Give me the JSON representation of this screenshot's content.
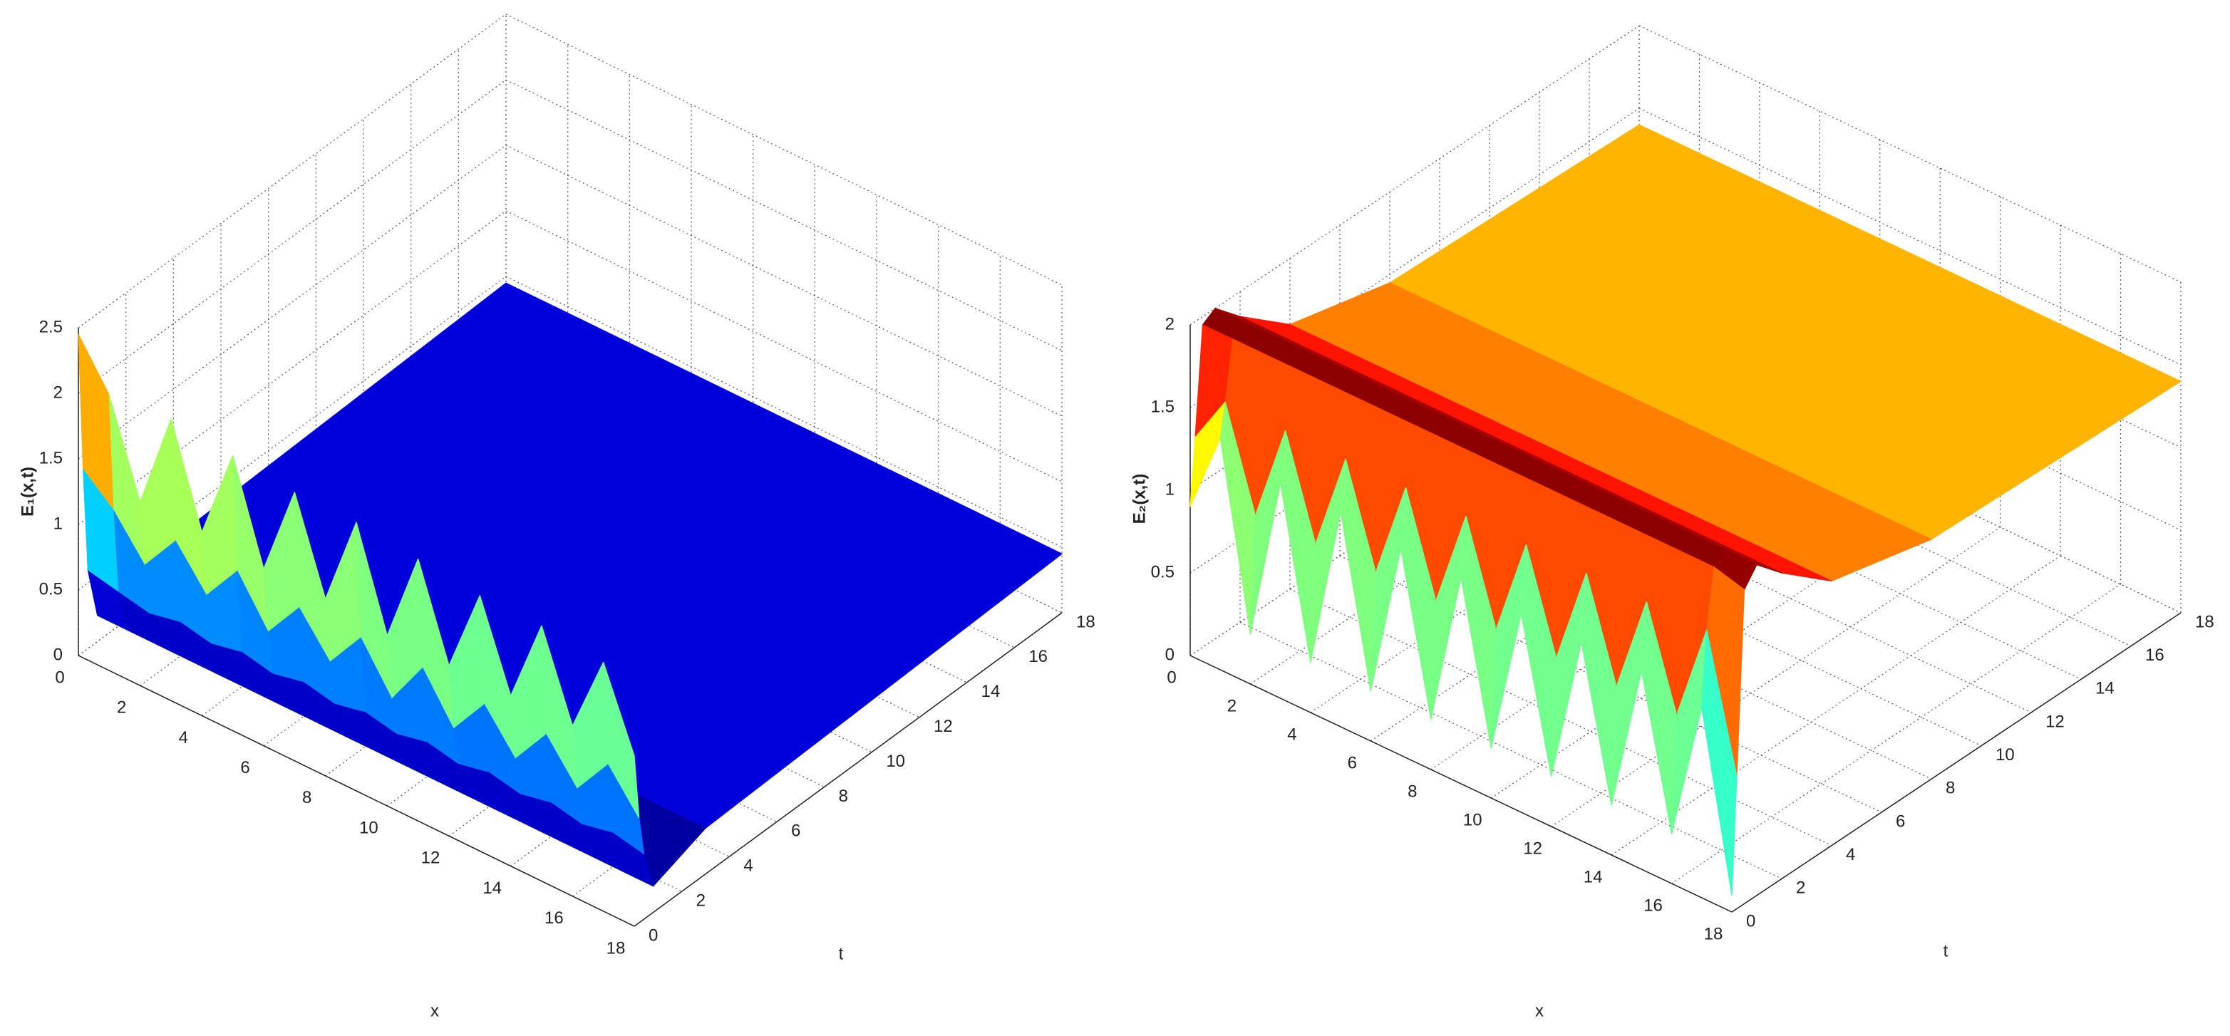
{
  "chart_data": [
    {
      "type": "surface",
      "colormap": "jet",
      "grid": true,
      "xlabel": "x",
      "tlabel": "t",
      "zlabel": "E₁(x,t)",
      "x": [
        0,
        1,
        2,
        3,
        4,
        5,
        6,
        7,
        8,
        9,
        10,
        11,
        12,
        13,
        14,
        15,
        16,
        17,
        18
      ],
      "t": [
        0,
        0.2,
        0.4,
        0.8,
        3,
        18
      ],
      "z": [
        [
          2.45,
          2.1,
          1.4,
          2.15,
          1.4,
          2.1,
          1.35,
          2.05,
          1.35,
          2.05,
          1.3,
          2.0,
          1.3,
          1.95,
          1.3,
          1.95,
          1.3,
          1.9,
          1.3
        ],
        [
          1.4,
          1.2,
          0.9,
          1.2,
          0.9,
          1.2,
          0.85,
          1.15,
          0.85,
          1.15,
          0.8,
          1.15,
          0.8,
          1.1,
          0.8,
          1.1,
          0.8,
          1.1,
          0.8
        ],
        [
          0.6,
          0.55,
          0.5,
          0.55,
          0.5,
          0.55,
          0.5,
          0.55,
          0.5,
          0.55,
          0.5,
          0.55,
          0.5,
          0.55,
          0.5,
          0.55,
          0.5,
          0.55,
          0.5
        ],
        [
          0.2,
          0.2,
          0.2,
          0.2,
          0.2,
          0.2,
          0.2,
          0.2,
          0.2,
          0.2,
          0.2,
          0.2,
          0.2,
          0.2,
          0.2,
          0.2,
          0.2,
          0.2,
          0.2
        ],
        [
          0.35,
          0.35,
          0.35,
          0.35,
          0.35,
          0.35,
          0.35,
          0.35,
          0.35,
          0.35,
          0.35,
          0.35,
          0.35,
          0.35,
          0.35,
          0.35,
          0.35,
          0.35,
          0.35
        ],
        [
          0.45,
          0.45,
          0.45,
          0.45,
          0.45,
          0.45,
          0.45,
          0.45,
          0.45,
          0.45,
          0.45,
          0.45,
          0.45,
          0.45,
          0.45,
          0.45,
          0.45,
          0.45,
          0.45
        ]
      ],
      "xlim": [
        0,
        18
      ],
      "tlim": [
        0,
        18
      ],
      "zlim": [
        0,
        2.5
      ],
      "xticks": [
        0,
        2,
        4,
        6,
        8,
        10,
        12,
        14,
        16,
        18
      ],
      "tticks": [
        0,
        2,
        4,
        6,
        8,
        10,
        12,
        14,
        16,
        18
      ],
      "zticks": [
        0,
        0.5,
        1,
        1.5,
        2,
        2.5
      ]
    },
    {
      "type": "surface",
      "colormap": "jet",
      "grid": true,
      "xlabel": "x",
      "tlabel": "t",
      "zlabel": "E₂(x,t)",
      "x": [
        0,
        1,
        2,
        3,
        4,
        5,
        6,
        7,
        8,
        9,
        10,
        11,
        12,
        13,
        14,
        15,
        16,
        17,
        18
      ],
      "t": [
        0,
        0.2,
        0.5,
        1,
        2,
        4,
        8,
        18
      ],
      "z": [
        [
          0.9,
          1.4,
          0.3,
          1.3,
          0.3,
          1.3,
          0.3,
          1.25,
          0.3,
          1.25,
          0.3,
          1.2,
          0.3,
          1.2,
          0.3,
          1.2,
          0.3,
          1.15,
          0.1
        ],
        [
          1.3,
          1.6,
          1.0,
          1.6,
          1.0,
          1.6,
          1.0,
          1.6,
          1.0,
          1.6,
          1.0,
          1.6,
          1.0,
          1.6,
          1.0,
          1.6,
          1.0,
          1.6,
          0.8
        ],
        [
          1.95,
          1.95,
          1.95,
          1.95,
          1.95,
          1.95,
          1.95,
          1.95,
          1.95,
          1.95,
          1.95,
          1.95,
          1.95,
          1.95,
          1.95,
          1.95,
          1.95,
          1.95,
          1.9
        ],
        [
          2.0,
          2.0,
          2.0,
          2.0,
          2.0,
          2.0,
          2.0,
          2.0,
          2.0,
          2.0,
          2.0,
          2.0,
          2.0,
          2.0,
          2.0,
          2.0,
          2.0,
          2.0,
          2.0
        ],
        [
          1.85,
          1.85,
          1.85,
          1.85,
          1.85,
          1.85,
          1.85,
          1.85,
          1.85,
          1.85,
          1.85,
          1.85,
          1.85,
          1.85,
          1.85,
          1.85,
          1.85,
          1.85,
          1.85
        ],
        [
          1.6,
          1.6,
          1.6,
          1.6,
          1.6,
          1.6,
          1.6,
          1.6,
          1.6,
          1.6,
          1.6,
          1.6,
          1.6,
          1.6,
          1.6,
          1.6,
          1.6,
          1.6,
          1.6
        ],
        [
          1.45,
          1.45,
          1.45,
          1.45,
          1.45,
          1.45,
          1.45,
          1.45,
          1.45,
          1.45,
          1.45,
          1.45,
          1.45,
          1.45,
          1.45,
          1.45,
          1.45,
          1.45,
          1.45
        ],
        [
          1.4,
          1.4,
          1.4,
          1.4,
          1.4,
          1.4,
          1.4,
          1.4,
          1.4,
          1.4,
          1.4,
          1.4,
          1.4,
          1.4,
          1.4,
          1.4,
          1.4,
          1.4,
          1.4
        ]
      ],
      "xlim": [
        0,
        18
      ],
      "tlim": [
        0,
        18
      ],
      "zlim": [
        0,
        2
      ],
      "xticks": [
        0,
        2,
        4,
        6,
        8,
        10,
        12,
        14,
        16,
        18
      ],
      "tticks": [
        0,
        2,
        4,
        6,
        8,
        10,
        12,
        14,
        16,
        18
      ],
      "zticks": [
        0,
        0.5,
        1,
        1.5,
        2
      ]
    }
  ]
}
